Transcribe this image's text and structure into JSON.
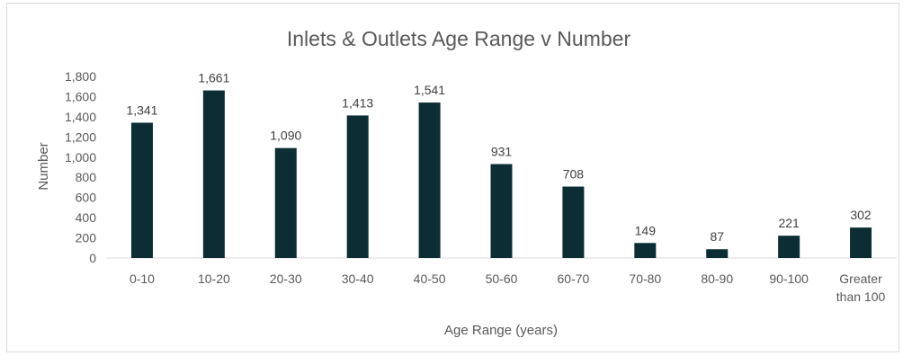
{
  "chart_data": {
    "type": "bar",
    "title": "Inlets & Outlets Age Range v Number",
    "xlabel": "Age Range (years)",
    "ylabel": "Number",
    "ylim": [
      0,
      1800
    ],
    "ytick_step": 200,
    "yticks": [
      "0",
      "200",
      "400",
      "600",
      "800",
      "1,000",
      "1,200",
      "1,400",
      "1,600",
      "1,800"
    ],
    "grid": false,
    "legend": "none",
    "bar_color": "#0b2d33",
    "categories": [
      "0-10",
      "10-20",
      "20-30",
      "30-40",
      "40-50",
      "50-60",
      "60-70",
      "70-80",
      "80-90",
      "90-100",
      "Greater than 100"
    ],
    "values": [
      1341,
      1661,
      1090,
      1413,
      1541,
      931,
      708,
      149,
      87,
      221,
      302
    ],
    "data_labels": [
      "1,341",
      "1,661",
      "1,090",
      "1,413",
      "1,541",
      "931",
      "708",
      "149",
      "87",
      "221",
      "302"
    ]
  }
}
